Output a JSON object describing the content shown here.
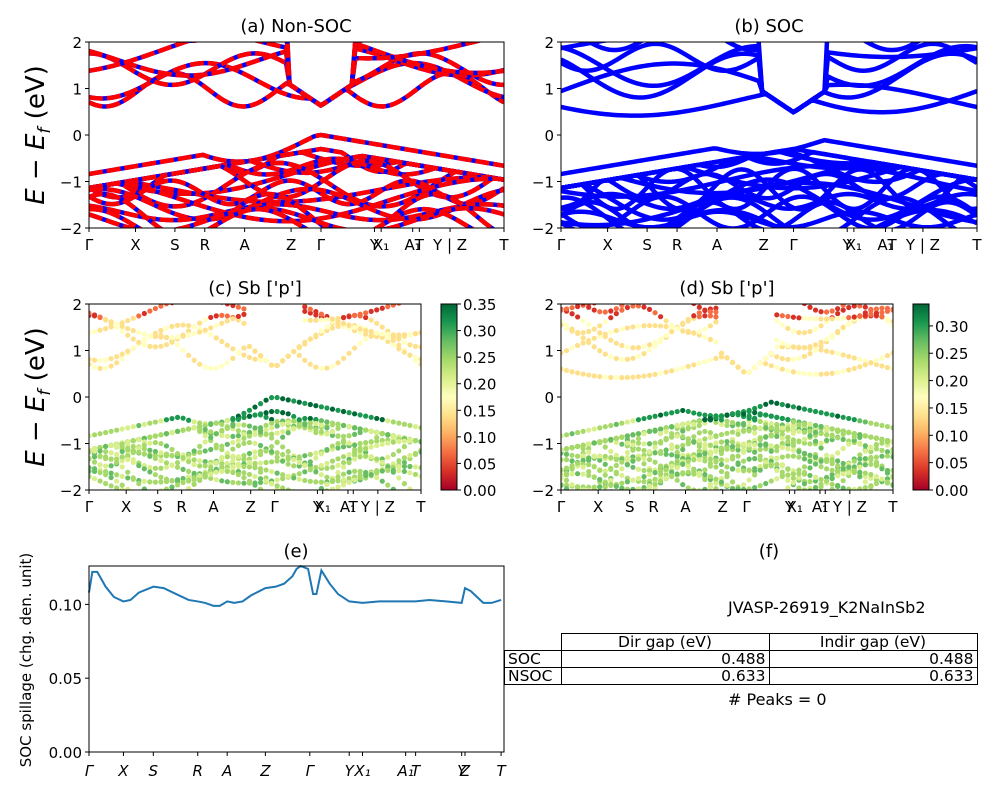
{
  "figure": {
    "material_label": "JVASP-26919_K2NaInSb2",
    "peaks_label": "# Peaks = 0"
  },
  "chart_data": [
    {
      "id": "a",
      "type": "line",
      "title": "(a) Non-SOC",
      "ylabel": "E − E_f (eV)",
      "ylim": [
        -2,
        2
      ],
      "yticks": [
        -2,
        -1,
        0,
        1,
        2
      ],
      "x_ticks": [
        {
          "label": "Γ",
          "pos": 0.0
        },
        {
          "label": "X",
          "pos": 0.112
        },
        {
          "label": "S",
          "pos": 0.207
        },
        {
          "label": "R",
          "pos": 0.279
        },
        {
          "label": "A",
          "pos": 0.375
        },
        {
          "label": "Z",
          "pos": 0.487
        },
        {
          "label": "Γ",
          "pos": 0.559
        },
        {
          "label": "Y",
          "pos": 0.688
        },
        {
          "label": "X₁",
          "pos": 0.704
        },
        {
          "label": "A₁",
          "pos": 0.78
        },
        {
          "label": "T",
          "pos": 0.796
        },
        {
          "label": "Y | Z",
          "pos": 0.87
        },
        {
          "label": "T",
          "pos": 1.0
        }
      ],
      "series_colors": [
        "#ff0000",
        "#0000ff"
      ],
      "band_gap_eV": 0.633,
      "vbm_eV": 0.0,
      "cbm_eV": 0.633
    },
    {
      "id": "b",
      "type": "line",
      "title": "(b) SOC",
      "ylim": [
        -2,
        2
      ],
      "yticks": [
        -2,
        -1,
        0,
        1,
        2
      ],
      "series_colors": [
        "#0000ff"
      ],
      "band_gap_eV": 0.488,
      "vbm_eV": 0.0,
      "cbm_eV": 0.488
    },
    {
      "id": "c",
      "type": "scatter",
      "title": "(c)  Sb ['p']",
      "ylabel": "E − E_f (eV)",
      "ylim": [
        -2,
        2
      ],
      "yticks": [
        -2,
        -1,
        0,
        1,
        2
      ],
      "colorbar": {
        "cmap": "RdYlGn",
        "range": [
          0,
          0.35
        ],
        "ticks": [
          "0.00",
          "0.05",
          "0.10",
          "0.15",
          "0.20",
          "0.25",
          "0.30",
          "0.35"
        ]
      }
    },
    {
      "id": "d",
      "type": "scatter",
      "title": "(d) Sb ['p']",
      "ylim": [
        -2,
        2
      ],
      "yticks": [
        -2,
        -1,
        0,
        1,
        2
      ],
      "colorbar": {
        "cmap": "RdYlGn",
        "range": [
          0,
          0.34
        ],
        "ticks": [
          "0.00",
          "0.05",
          "0.10",
          "0.15",
          "0.20",
          "0.25",
          "0.30"
        ]
      }
    },
    {
      "id": "e",
      "type": "line",
      "title": "(e)",
      "ylabel": "SOC spillage (chg. den. unit)",
      "ylim": [
        0,
        0.126
      ],
      "yticks": [
        "0.00",
        "0.05",
        "0.10"
      ],
      "x_ticks": [
        {
          "label": "Γ",
          "pos": 0.0
        },
        {
          "label": "X",
          "pos": 0.083
        },
        {
          "label": "S",
          "pos": 0.155
        },
        {
          "label": "R",
          "pos": 0.262
        },
        {
          "label": "A",
          "pos": 0.333
        },
        {
          "label": "Z",
          "pos": 0.425
        },
        {
          "label": "Γ",
          "pos": 0.532
        },
        {
          "label": "Y",
          "pos": 0.627
        },
        {
          "label": "X₁",
          "pos": 0.659
        },
        {
          "label": "A₁",
          "pos": 0.763
        },
        {
          "label": "T",
          "pos": 0.787
        },
        {
          "label": "Y",
          "pos": 0.898
        },
        {
          "label": "Z",
          "pos": 0.906
        },
        {
          "label": "T",
          "pos": 0.993
        }
      ],
      "color": "#1f77b4",
      "x": [
        0,
        0.008,
        0.02,
        0.04,
        0.06,
        0.083,
        0.1,
        0.12,
        0.155,
        0.18,
        0.21,
        0.24,
        0.262,
        0.28,
        0.3,
        0.315,
        0.333,
        0.35,
        0.37,
        0.39,
        0.425,
        0.45,
        0.47,
        0.49,
        0.5,
        0.51,
        0.528,
        0.535,
        0.54,
        0.548,
        0.56,
        0.58,
        0.6,
        0.627,
        0.659,
        0.7,
        0.763,
        0.787,
        0.82,
        0.86,
        0.898,
        0.906,
        0.92,
        0.95,
        0.97,
        0.993
      ],
      "values": [
        0.108,
        0.122,
        0.122,
        0.112,
        0.105,
        0.102,
        0.103,
        0.108,
        0.112,
        0.111,
        0.107,
        0.103,
        0.102,
        0.101,
        0.099,
        0.099,
        0.102,
        0.101,
        0.102,
        0.106,
        0.111,
        0.112,
        0.114,
        0.119,
        0.124,
        0.126,
        0.124,
        0.114,
        0.107,
        0.107,
        0.123,
        0.114,
        0.107,
        0.102,
        0.101,
        0.102,
        0.102,
        0.102,
        0.103,
        0.102,
        0.101,
        0.111,
        0.109,
        0.101,
        0.101,
        0.103
      ]
    },
    {
      "id": "f",
      "type": "table",
      "title": "(f)",
      "columns": [
        "",
        "Dir gap (eV)",
        "Indir gap (eV)"
      ],
      "rows": [
        [
          "SOC",
          "0.488",
          "0.488"
        ],
        [
          "NSOC",
          "0.633",
          "0.633"
        ]
      ]
    }
  ]
}
